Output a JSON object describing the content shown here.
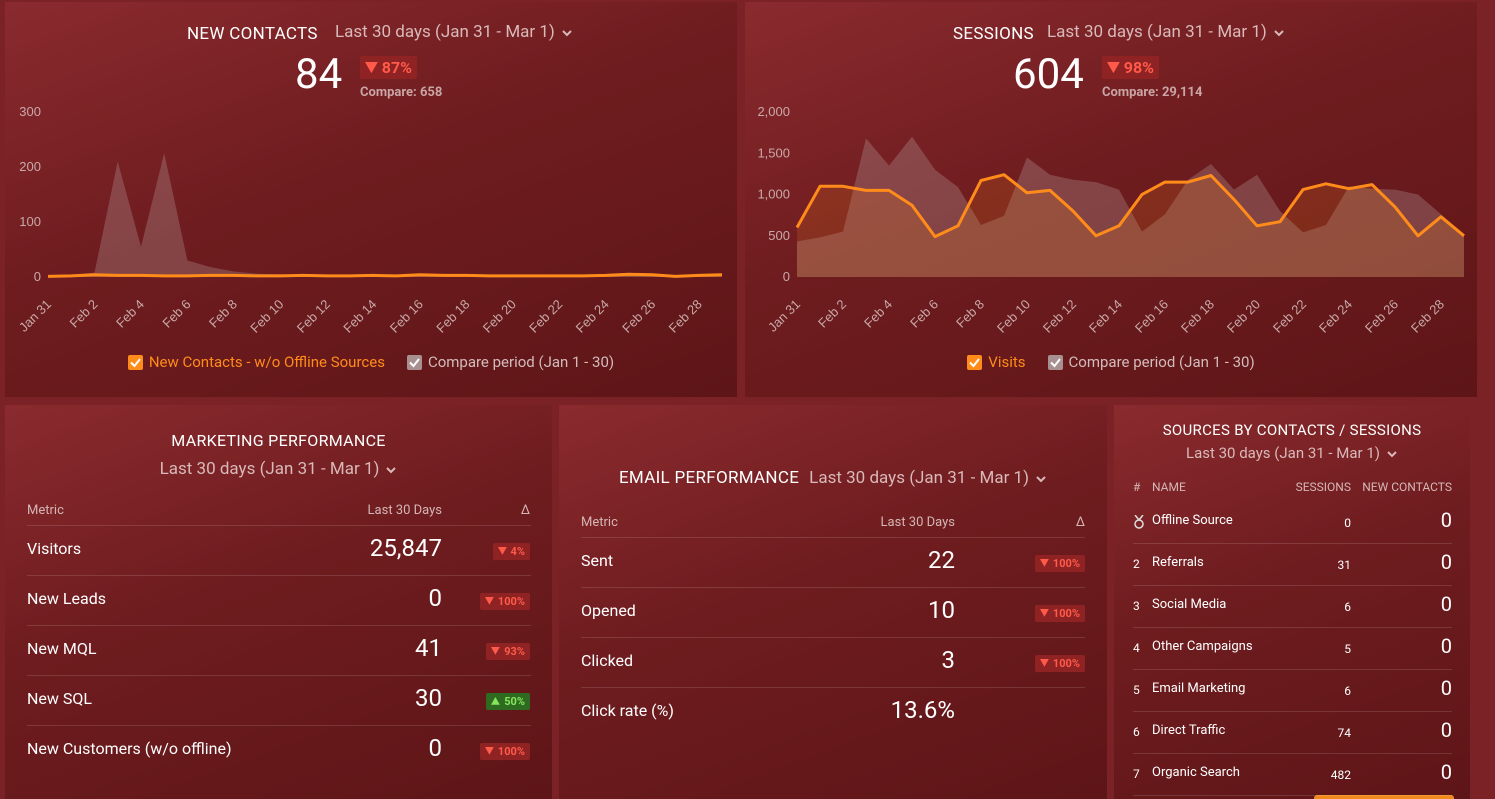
{
  "new_contacts": {
    "title": "NEW CONTACTS",
    "period": "Last 30 days (Jan 31 - Mar 1)",
    "value": 84,
    "change": "87%",
    "change_direction": "down",
    "compare_label": "Compare:",
    "compare_value": 658,
    "chart": {
      "type": "line",
      "categories": [
        "Jan 31",
        null,
        "Feb 2",
        null,
        "Feb 4",
        null,
        "Feb 6",
        null,
        "Feb 8",
        null,
        "Feb 10",
        null,
        "Feb 12",
        null,
        "Feb 14",
        null,
        "Feb 16",
        null,
        "Feb 18",
        null,
        "Feb 20",
        null,
        "Feb 22",
        null,
        "Feb 24",
        null,
        "Feb 26",
        null,
        "Feb 28",
        null
      ],
      "series": [
        {
          "name": "New Contacts - w/o Offline Sources",
          "color": "#ff8c1a",
          "values": [
            1,
            2,
            4,
            3,
            3,
            2,
            2,
            3,
            3,
            2,
            2,
            3,
            2,
            2,
            3,
            2,
            4,
            3,
            3,
            2,
            2,
            2,
            2,
            2,
            3,
            5,
            4,
            1,
            3,
            4
          ]
        },
        {
          "name": "Compare period (Jan 1 - 30)",
          "color": "#b9a3a3",
          "values": [
            2,
            4,
            8,
            210,
            55,
            225,
            30,
            18,
            10,
            6,
            5,
            4,
            3,
            3,
            4,
            3,
            3,
            2,
            3,
            3,
            2,
            2,
            3,
            2,
            3,
            3,
            2,
            2,
            3,
            2
          ]
        }
      ],
      "ylim": [
        0,
        300
      ],
      "yticks": [
        0,
        100,
        200,
        300
      ]
    }
  },
  "sessions": {
    "title": "SESSIONS",
    "period": "Last 30 days (Jan 31 - Mar 1)",
    "value": 604,
    "change": "98%",
    "change_direction": "down",
    "compare_label": "Compare:",
    "compare_value": "29,114",
    "chart": {
      "type": "line",
      "categories": [
        "Jan 31",
        null,
        "Feb 2",
        null,
        "Feb 4",
        null,
        "Feb 6",
        null,
        "Feb 8",
        null,
        "Feb 10",
        null,
        "Feb 12",
        null,
        "Feb 14",
        null,
        "Feb 16",
        null,
        "Feb 18",
        null,
        "Feb 20",
        null,
        "Feb 22",
        null,
        "Feb 24",
        null,
        "Feb 26",
        null,
        "Feb 28",
        null
      ],
      "series": [
        {
          "name": "Visits",
          "color": "#ff8c1a",
          "values": [
            600,
            1100,
            1100,
            1050,
            1050,
            870,
            490,
            620,
            1170,
            1240,
            1020,
            1050,
            800,
            500,
            620,
            1000,
            1150,
            1150,
            1230,
            940,
            620,
            670,
            1060,
            1130,
            1070,
            1120,
            850,
            500,
            730,
            500
          ]
        },
        {
          "name": "Compare period (Jan 1 - 30)",
          "color": "#b9a3a3",
          "values": [
            430,
            480,
            550,
            1680,
            1350,
            1700,
            1300,
            1090,
            630,
            740,
            1450,
            1240,
            1180,
            1150,
            1060,
            550,
            760,
            1180,
            1370,
            1060,
            1240,
            800,
            540,
            630,
            1100,
            1070,
            1060,
            1000,
            760,
            510
          ]
        }
      ],
      "ylim": [
        0,
        2000
      ],
      "yticks": [
        0,
        500,
        {
          "value": 1000,
          "label": "1,000"
        },
        {
          "value": 1500,
          "label": "1,500"
        },
        {
          "value": 2000,
          "label": "2,000"
        }
      ]
    }
  },
  "marketing_performance": {
    "title": "MARKETING PERFORMANCE",
    "period": "Last 30 days (Jan 31 - Mar 1)",
    "columns": [
      "Metric",
      "Last 30 Days",
      "Δ"
    ],
    "rows": [
      {
        "metric": "Visitors",
        "value": "25,847",
        "change": "4%",
        "direction": "down"
      },
      {
        "metric": "New Leads",
        "value": "0",
        "change": "100%",
        "direction": "down"
      },
      {
        "metric": "New MQL",
        "value": "41",
        "change": "93%",
        "direction": "down"
      },
      {
        "metric": "New SQL",
        "value": "30",
        "change": "50%",
        "direction": "up"
      },
      {
        "metric": "New Customers (w/o offline)",
        "value": "0",
        "change": "100%",
        "direction": "down"
      }
    ]
  },
  "email_performance": {
    "title": "EMAIL PERFORMANCE",
    "period": "Last 30 days (Jan 31 - Mar 1)",
    "columns": [
      "Metric",
      "Last 30 Days",
      "Δ"
    ],
    "rows": [
      {
        "metric": "Sent",
        "value": "22",
        "change": "100%",
        "direction": "down"
      },
      {
        "metric": "Opened",
        "value": "10",
        "change": "100%",
        "direction": "down"
      },
      {
        "metric": "Clicked",
        "value": "3",
        "change": "100%",
        "direction": "down"
      },
      {
        "metric": "Click rate (%)",
        "value": "13.6%"
      }
    ]
  },
  "sources": {
    "title": "SOURCES BY CONTACTS / SESSIONS",
    "period": "Last 30 days (Jan 31 - Mar 1)",
    "columns": [
      "#",
      "NAME",
      "SESSIONS",
      "NEW CONTACTS"
    ],
    "rows": [
      {
        "name": "Offline Source",
        "sessions": 0,
        "contacts": 0
      },
      {
        "rank": 2,
        "name": "Referrals",
        "sessions": 31,
        "contacts": 0
      },
      {
        "rank": 3,
        "name": "Social Media",
        "sessions": 6,
        "contacts": 0
      },
      {
        "rank": 4,
        "name": "Other Campaigns",
        "sessions": 5,
        "contacts": 0
      },
      {
        "rank": 5,
        "name": "Email Marketing",
        "sessions": 6,
        "contacts": 0
      },
      {
        "rank": 6,
        "name": "Direct Traffic",
        "sessions": 74,
        "contacts": 0
      },
      {
        "rank": 7,
        "name": "Organic Search",
        "sessions": 482,
        "contacts": 0
      }
    ]
  }
}
